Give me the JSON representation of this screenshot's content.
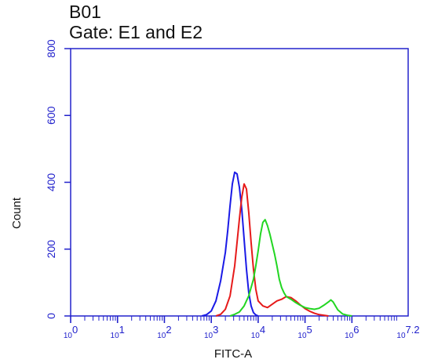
{
  "chart_data": {
    "type": "line",
    "sample_id": "B01",
    "gate_label": "Gate: E1 and E2",
    "xlabel": "FITC-A",
    "ylabel": "Count",
    "x_scale": "log",
    "xlim": [
      1,
      15848932
    ],
    "ylim": [
      0,
      800
    ],
    "y_ticks": [
      0,
      200,
      400,
      600,
      800
    ],
    "x_ticks": [
      {
        "value": 1,
        "base": "10",
        "exp": "0"
      },
      {
        "value": 10,
        "base": "10",
        "exp": "1"
      },
      {
        "value": 100,
        "base": "10",
        "exp": "2"
      },
      {
        "value": 1000,
        "base": "10",
        "exp": "3"
      },
      {
        "value": 10000,
        "base": "10",
        "exp": "4"
      },
      {
        "value": 100000,
        "base": "10",
        "exp": "5"
      },
      {
        "value": 1000000,
        "base": "10",
        "exp": "6"
      },
      {
        "value": 15848932,
        "base": "10",
        "exp": "7.2"
      }
    ],
    "grid": false,
    "colors": {
      "frame": "#2222cc",
      "axis_text": "#2222cc",
      "blue": "#1a1ae6",
      "red": "#e61a1a",
      "green": "#22d622"
    },
    "series": [
      {
        "color": "#1a1ae6",
        "points": [
          [
            631,
            0
          ],
          [
            794,
            4
          ],
          [
            1000,
            15
          ],
          [
            1259,
            45
          ],
          [
            1585,
            105
          ],
          [
            1995,
            190
          ],
          [
            2239,
            255
          ],
          [
            2512,
            330
          ],
          [
            2818,
            395
          ],
          [
            3162,
            430
          ],
          [
            3548,
            425
          ],
          [
            3981,
            385
          ],
          [
            4467,
            320
          ],
          [
            5012,
            230
          ],
          [
            5623,
            140
          ],
          [
            6310,
            70
          ],
          [
            7079,
            30
          ],
          [
            7943,
            10
          ],
          [
            8913,
            3
          ],
          [
            10000,
            0
          ]
        ]
      },
      {
        "color": "#e61a1a",
        "points": [
          [
            1259,
            0
          ],
          [
            1585,
            5
          ],
          [
            1995,
            20
          ],
          [
            2512,
            60
          ],
          [
            3162,
            150
          ],
          [
            3548,
            220
          ],
          [
            3981,
            290
          ],
          [
            4467,
            355
          ],
          [
            5012,
            395
          ],
          [
            5623,
            380
          ],
          [
            6310,
            310
          ],
          [
            7079,
            220
          ],
          [
            7943,
            140
          ],
          [
            8913,
            80
          ],
          [
            10000,
            45
          ],
          [
            12589,
            30
          ],
          [
            15849,
            25
          ],
          [
            19953,
            35
          ],
          [
            25119,
            45
          ],
          [
            31623,
            50
          ],
          [
            39811,
            58
          ],
          [
            50119,
            55
          ],
          [
            63096,
            45
          ],
          [
            79433,
            33
          ],
          [
            100000,
            22
          ],
          [
            125893,
            14
          ],
          [
            158489,
            8
          ],
          [
            199526,
            4
          ],
          [
            251189,
            2
          ],
          [
            316228,
            0
          ]
        ]
      },
      {
        "color": "#22d622",
        "points": [
          [
            2512,
            0
          ],
          [
            3162,
            5
          ],
          [
            3981,
            12
          ],
          [
            5012,
            30
          ],
          [
            6310,
            60
          ],
          [
            7943,
            110
          ],
          [
            8913,
            150
          ],
          [
            10000,
            195
          ],
          [
            11220,
            245
          ],
          [
            12589,
            280
          ],
          [
            14125,
            288
          ],
          [
            15849,
            270
          ],
          [
            17783,
            245
          ],
          [
            19953,
            215
          ],
          [
            22387,
            185
          ],
          [
            25119,
            150
          ],
          [
            28184,
            110
          ],
          [
            31623,
            85
          ],
          [
            35481,
            70
          ],
          [
            39811,
            58
          ],
          [
            50119,
            50
          ],
          [
            63096,
            40
          ],
          [
            79433,
            32
          ],
          [
            100000,
            25
          ],
          [
            125893,
            22
          ],
          [
            158489,
            20
          ],
          [
            199526,
            23
          ],
          [
            251189,
            32
          ],
          [
            316228,
            42
          ],
          [
            354813,
            48
          ],
          [
            398107,
            42
          ],
          [
            446684,
            30
          ],
          [
            501187,
            18
          ],
          [
            630957,
            6
          ],
          [
            794328,
            2
          ],
          [
            1000000,
            0
          ]
        ]
      }
    ]
  }
}
